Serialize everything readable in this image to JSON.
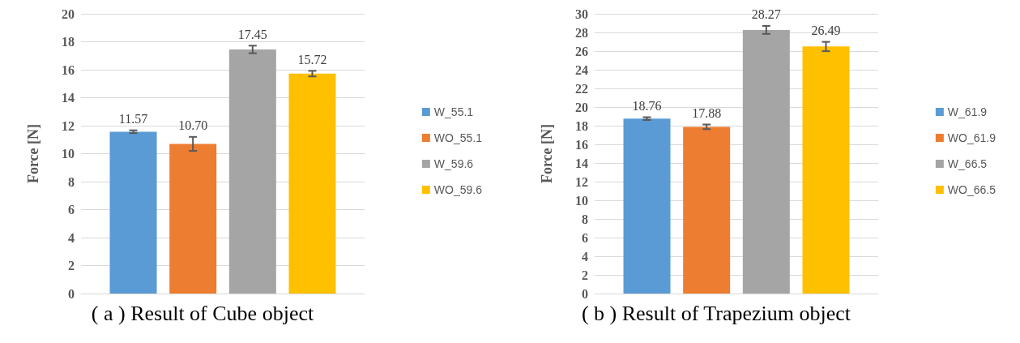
{
  "chart_data": [
    {
      "type": "bar",
      "ylabel": "Force [N]",
      "annotations": [
        "( a ) Result of Cube object"
      ],
      "categories": [
        null
      ],
      "series": [
        {
          "name": "W_55.1",
          "color": "#5b9bd5",
          "values": [
            11.57
          ],
          "errors": [
            0.1
          ],
          "value_labels": [
            "11.57"
          ]
        },
        {
          "name": "WO_55.1",
          "color": "#ed7d31",
          "values": [
            10.7
          ],
          "errors": [
            0.5
          ],
          "value_labels": [
            "10.70"
          ]
        },
        {
          "name": "W_59.6",
          "color": "#a5a5a5",
          "values": [
            17.45
          ],
          "errors": [
            0.27
          ],
          "value_labels": [
            "17.45"
          ]
        },
        {
          "name": "WO_59.6",
          "color": "#ffc000",
          "values": [
            15.72
          ],
          "errors": [
            0.2
          ],
          "value_labels": [
            "15.72"
          ]
        }
      ],
      "ylim": [
        0,
        20
      ],
      "yticks": [
        0,
        2,
        4,
        6,
        8,
        10,
        12,
        14,
        16,
        18,
        20
      ],
      "grid": "y",
      "legend": "right"
    },
    {
      "type": "bar",
      "ylabel": "Force [N]",
      "annotations": [
        "( b ) Result of Trapezium object"
      ],
      "categories": [
        null
      ],
      "series": [
        {
          "name": "W_61.9",
          "color": "#5b9bd5",
          "values": [
            18.76
          ],
          "errors": [
            0.15
          ]
        },
        {
          "name": "WO_61.9",
          "color": "#ed7d31",
          "values": [
            17.88
          ],
          "errors": [
            0.25
          ]
        },
        {
          "name": "W_66.5",
          "color": "#a5a5a5",
          "values": [
            28.27
          ],
          "errors": [
            0.43
          ]
        },
        {
          "name": "WO_66.5",
          "color": "#ffc000",
          "values": [
            26.49
          ],
          "errors": [
            0.5
          ]
        }
      ],
      "ylim": [
        0,
        30
      ],
      "yticks": [
        0,
        2,
        4,
        6,
        8,
        10,
        12,
        14,
        16,
        18,
        20,
        22,
        24,
        26,
        28,
        30
      ],
      "grid": "y",
      "legend": "right",
      "data_labels": true
    }
  ]
}
